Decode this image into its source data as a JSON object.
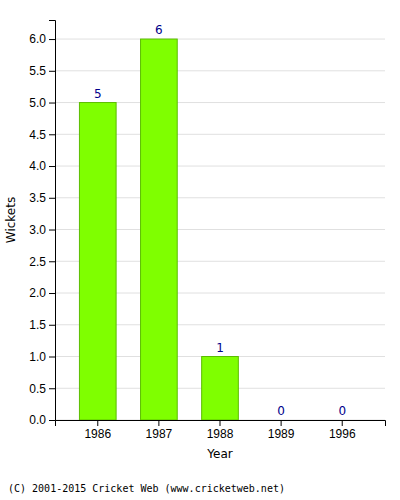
{
  "chart_data": {
    "type": "bar",
    "categories": [
      "1986",
      "1987",
      "1988",
      "1989",
      "1996"
    ],
    "values": [
      5,
      6,
      1,
      0,
      0
    ],
    "color": "#7FFF00",
    "xlabel": "Year",
    "ylabel": "Wickets",
    "ylim": [
      0,
      6.3
    ],
    "yticks": [
      {
        "value": 0,
        "label": "0.0"
      },
      0.5,
      {
        "value": 1,
        "label": "1.0"
      },
      1.5,
      {
        "value": 2,
        "label": "2.0"
      },
      2.5,
      {
        "value": 3,
        "label": "3.0"
      },
      3.5,
      {
        "value": 4,
        "label": "4.0"
      },
      4.5,
      {
        "value": 5,
        "label": "5.0"
      },
      5.5,
      {
        "value": 6,
        "label": "6.0"
      }
    ],
    "grid": true,
    "data_labels": true,
    "footnote": "(C) 2001-2015 Cricket Web (www.cricketweb.net)"
  }
}
